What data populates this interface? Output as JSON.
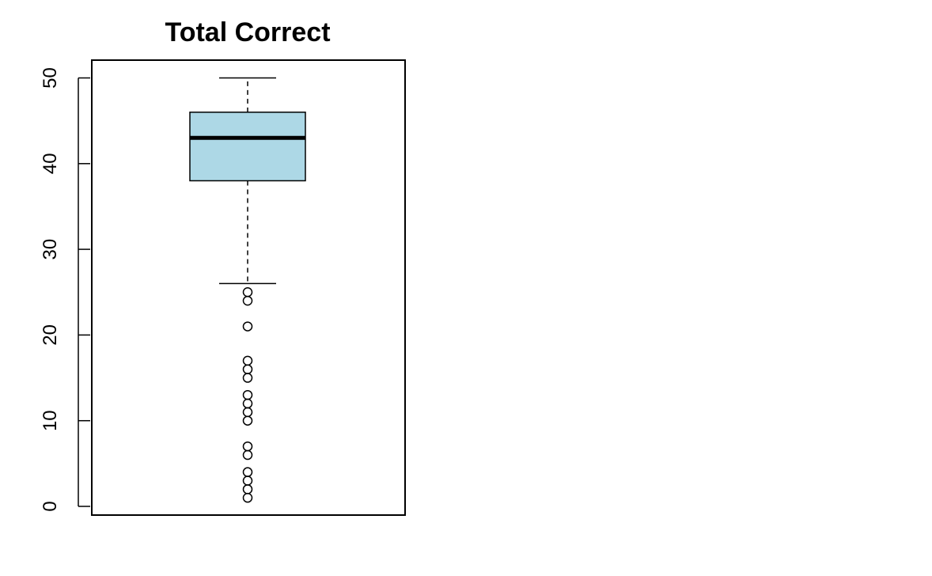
{
  "chart_data": {
    "type": "boxplot",
    "title": "Total Correct",
    "xlabel": "",
    "ylabel": "",
    "ylim": [
      -1,
      52
    ],
    "y_ticks": [
      0,
      10,
      20,
      30,
      40,
      50
    ],
    "y_tick_labels": [
      "0",
      "10",
      "20",
      "30",
      "40",
      "50"
    ],
    "box": {
      "lower_whisker": 26,
      "q1": 38,
      "median": 43,
      "q3": 46,
      "upper_whisker": 50
    },
    "outliers": [
      25,
      24,
      21,
      17,
      16,
      15,
      13,
      12,
      11,
      10,
      7,
      6,
      4,
      3,
      2,
      1
    ],
    "grid": false
  },
  "colors": {
    "box_fill": "#ADD8E6",
    "stroke": "#000000",
    "background": "#FFFFFF"
  }
}
